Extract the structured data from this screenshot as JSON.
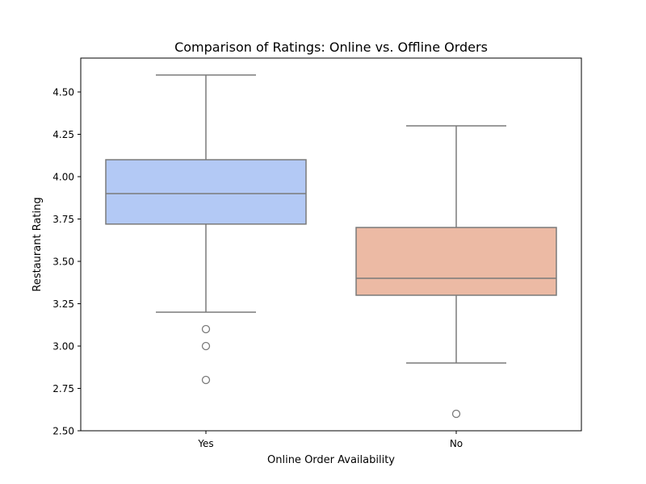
{
  "chart_data": {
    "type": "box",
    "title": "Comparison of Ratings: Online vs. Offline Orders",
    "xlabel": "Online Order Availability",
    "ylabel": "Restaurant Rating",
    "ylim": [
      2.5,
      4.7
    ],
    "yticks": [
      2.5,
      2.75,
      3.0,
      3.25,
      3.5,
      3.75,
      4.0,
      4.25,
      4.5
    ],
    "ytick_labels": [
      "2.50",
      "2.75",
      "3.00",
      "3.25",
      "3.50",
      "3.75",
      "4.00",
      "4.25",
      "4.50"
    ],
    "grid": false,
    "categories": [
      "Yes",
      "No"
    ],
    "boxes": [
      {
        "category": "Yes",
        "whisker_low": 3.2,
        "q1": 3.72,
        "median": 3.9,
        "q3": 4.1,
        "whisker_high": 4.6,
        "outliers": [
          3.1,
          3.0,
          2.8
        ],
        "color": "#b3c9f5"
      },
      {
        "category": "No",
        "whisker_low": 2.9,
        "q1": 3.3,
        "median": 3.4,
        "q3": 3.7,
        "whisker_high": 4.3,
        "outliers": [
          2.6
        ],
        "color": "#ecbaa4"
      }
    ],
    "line_color": "#7a7a7a"
  }
}
